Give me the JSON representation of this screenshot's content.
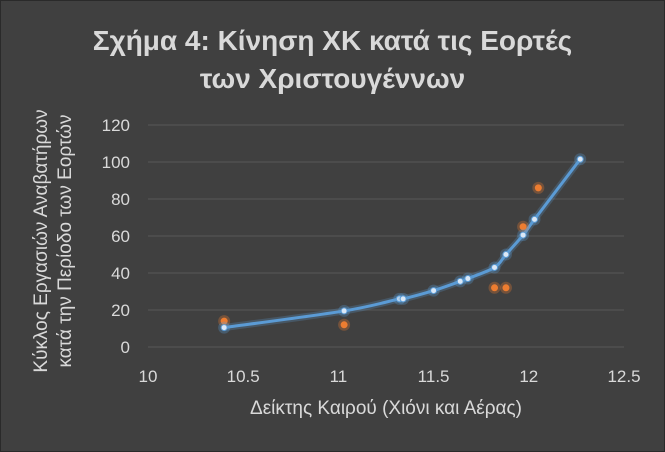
{
  "chart_data": {
    "type": "scatter",
    "title": [
      "Σχήμα 4:  Κίνηση ΧΚ κατά τις Εορτές",
      "των Χριστουγέννων"
    ],
    "xlabel": "Δείκτης Καιρού (Χιόνι και Αέρας)",
    "ylabel": [
      "Κύκλος Εργασιών Αναβατήρων",
      "κατά την Περίοδο των Εορτών"
    ],
    "xlim": [
      10,
      12.5
    ],
    "ylim": [
      0,
      120
    ],
    "x_ticks": [
      "10",
      "10.5",
      "11",
      "11.5",
      "12",
      "12.5"
    ],
    "y_ticks": [
      "0",
      "20",
      "40",
      "60",
      "80",
      "100",
      "120"
    ],
    "grid": true,
    "colors": {
      "observed": "#ed7d31",
      "fitted": "#5b9bd5",
      "text": "#d9d9d9",
      "background": "#404040",
      "grid": "#595959"
    },
    "series": [
      {
        "role": "observed",
        "x": [
          10.4,
          11.03,
          11.82,
          11.88,
          11.97,
          12.05
        ],
        "y": [
          14,
          12,
          32,
          32,
          65,
          86
        ]
      },
      {
        "role": "fitted",
        "x": [
          10.4,
          11.03,
          11.32,
          11.34,
          11.5,
          11.64,
          11.68,
          11.82,
          11.88,
          11.97,
          12.03,
          12.27
        ],
        "y": [
          10.5,
          19.5,
          26,
          26,
          30.5,
          35.5,
          37,
          43,
          50,
          60.5,
          69,
          101.5
        ]
      }
    ]
  }
}
